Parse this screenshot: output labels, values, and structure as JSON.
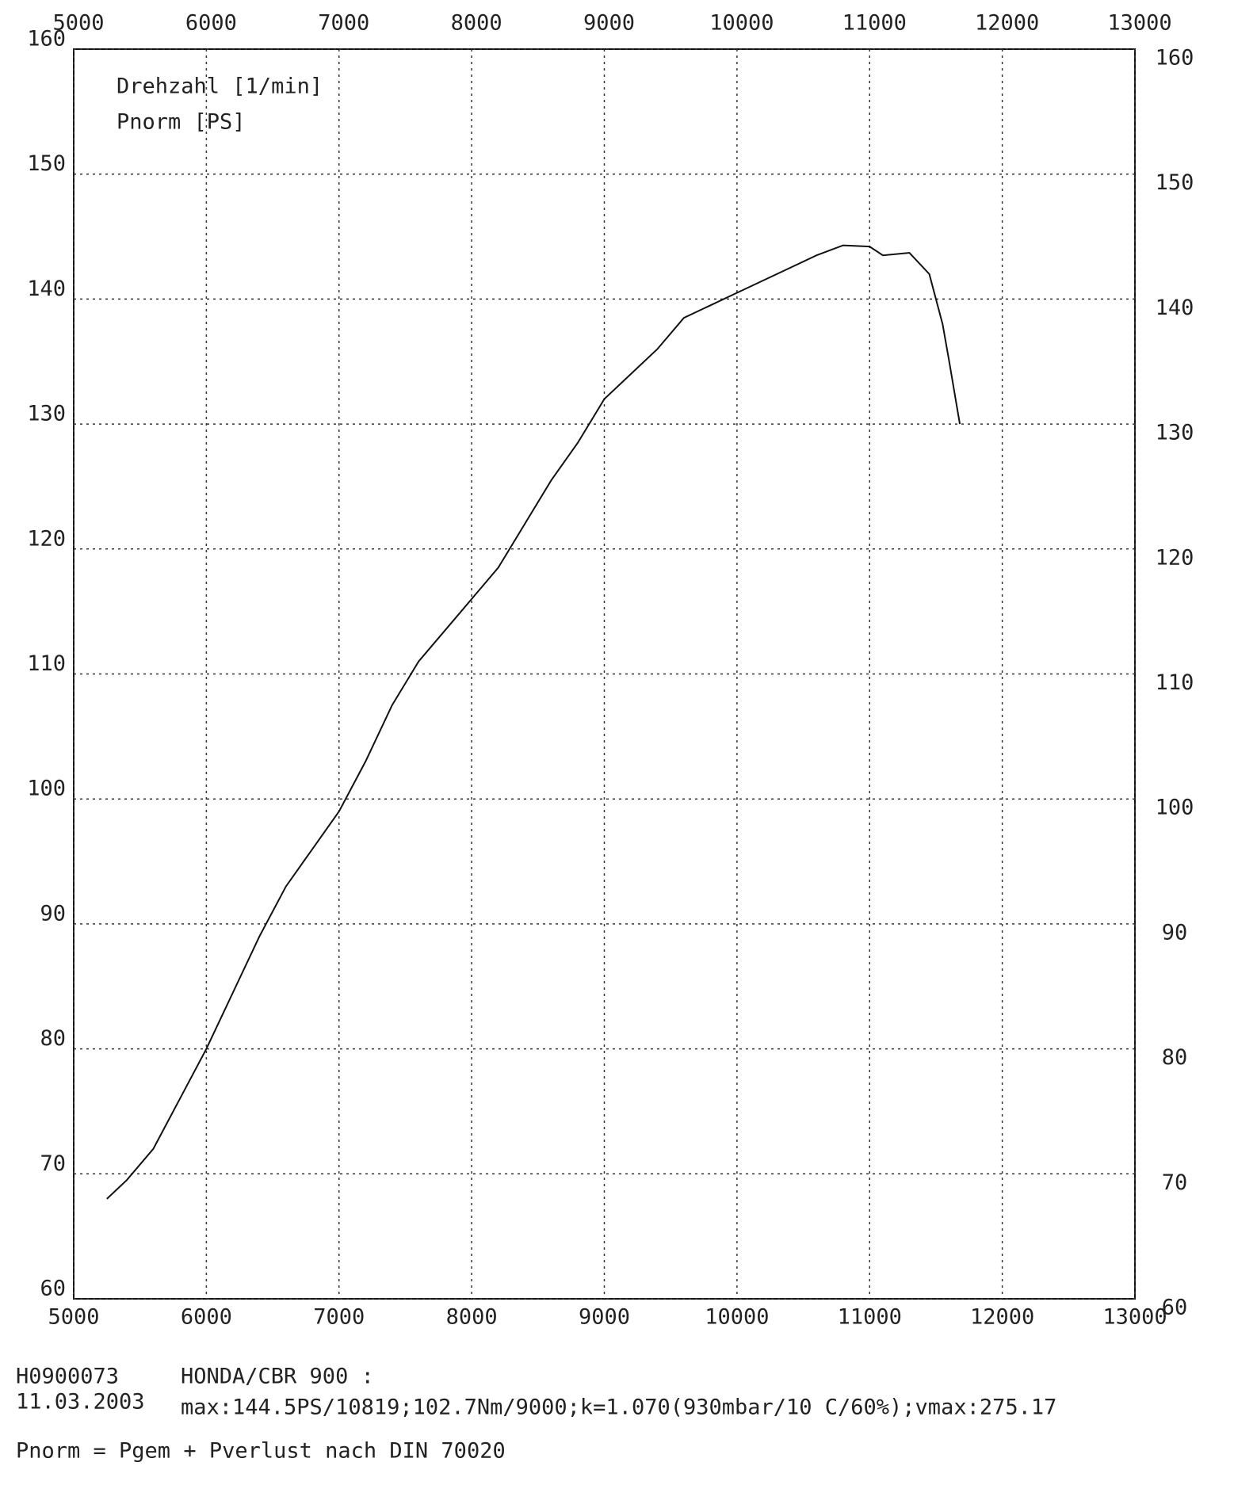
{
  "chart_data": {
    "type": "line",
    "x_label": "Drehzahl [1/min]",
    "y_label": "Pnorm [PS]",
    "x": [
      5250,
      5400,
      5600,
      5800,
      6000,
      6200,
      6400,
      6600,
      6800,
      7000,
      7200,
      7400,
      7600,
      7800,
      8000,
      8200,
      8400,
      8600,
      8800,
      9000,
      9200,
      9400,
      9600,
      9800,
      10000,
      10200,
      10400,
      10600,
      10800,
      11000,
      11100,
      11300,
      11450,
      11550,
      11600,
      11680
    ],
    "series": [
      {
        "color": "#111111",
        "values": [
          68,
          69.5,
          72,
          76,
          80,
          84.5,
          89,
          93,
          96,
          99,
          103,
          107.5,
          111,
          113.5,
          116,
          118.5,
          122,
          125.5,
          128.5,
          132,
          134,
          136,
          138.5,
          139.5,
          140.5,
          141.5,
          142.5,
          143.5,
          144.3,
          144.2,
          143.5,
          143.7,
          142,
          138,
          135,
          130
        ]
      }
    ],
    "xlim": [
      5000,
      13000
    ],
    "xticks": [
      5000,
      6000,
      7000,
      8000,
      9000,
      10000,
      11000,
      12000,
      13000
    ],
    "ylim": [
      60,
      160
    ],
    "yticks": [
      60,
      70,
      80,
      90,
      100,
      110,
      120,
      130,
      140,
      150,
      160
    ],
    "grid": true,
    "annotations": [
      "H0900073",
      "11.03.2003",
      "HONDA/CBR 900 :",
      "max:144.5PS/10819;102.7Nm/9000;k=1.070(930mbar/10 C/60%);vmax:275.17",
      "Pnorm = Pgem + Pverlust nach DIN 70020"
    ]
  }
}
